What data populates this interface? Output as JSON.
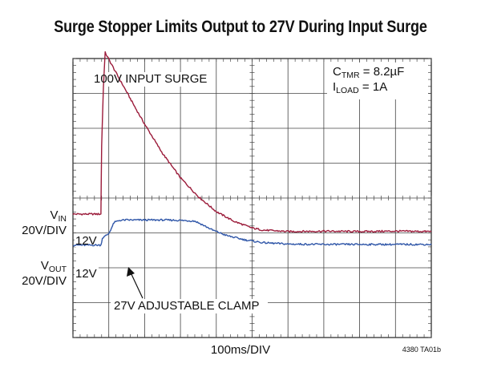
{
  "chart_data": {
    "type": "line",
    "title": "Surge Stopper Limits Output to 27V During Input Surge",
    "xlabel": "100ms/DIV",
    "figure_id": "4380 TA01b",
    "grid": true,
    "divisions": {
      "x": 10,
      "y": 8
    },
    "conditions": {
      "ctmr": {
        "main": "C",
        "sub": "TMR",
        "rest": " = 8.2µF"
      },
      "iload": {
        "main": "I",
        "sub": "LOAD",
        "rest": " = 1A"
      }
    },
    "channels": [
      {
        "main": "V",
        "sub": "IN",
        "scale": "20V/DIV",
        "baseline_label": "12V",
        "color": "#9b1b3a"
      },
      {
        "main": "V",
        "sub": "OUT",
        "scale": "20V/DIV",
        "baseline_label": "12V",
        "color": "#2f56a8"
      }
    ],
    "annotations": {
      "surge": "100V INPUT SURGE",
      "clamp": "27V ADJUSTABLE CLAMP"
    },
    "series": [
      {
        "name": "VIN",
        "x_div": [
          0,
          0.78,
          0.8,
          0.85,
          0.9,
          1.0,
          1.25,
          1.5,
          1.75,
          2.0,
          2.25,
          2.5,
          3.0,
          3.5,
          4.0,
          4.5,
          5.0,
          5.3,
          6.0,
          7.0,
          8.0,
          9.0,
          10.0
        ],
        "y_div": [
          -0.46,
          -0.46,
          1.5,
          3.2,
          4.17,
          3.98,
          3.5,
          3.04,
          2.57,
          2.12,
          1.7,
          1.28,
          0.58,
          0.04,
          -0.39,
          -0.67,
          -0.86,
          -0.92,
          -0.96,
          -0.95,
          -0.96,
          -0.95,
          -0.96
        ]
      },
      {
        "name": "VOUT",
        "x_div": [
          0,
          0.78,
          0.82,
          1.0,
          1.15,
          1.3,
          1.5,
          2.0,
          2.5,
          3.0,
          3.4,
          3.6,
          3.9,
          4.3,
          4.8,
          5.3,
          6.0,
          7.0,
          8.0,
          9.0,
          10.0
        ],
        "y_div": [
          -1.35,
          -1.35,
          -1.15,
          -1.02,
          -0.7,
          -0.64,
          -0.63,
          -0.63,
          -0.63,
          -0.64,
          -0.66,
          -0.76,
          -0.92,
          -1.08,
          -1.2,
          -1.28,
          -1.32,
          -1.33,
          -1.33,
          -1.33,
          -1.33
        ]
      }
    ]
  }
}
